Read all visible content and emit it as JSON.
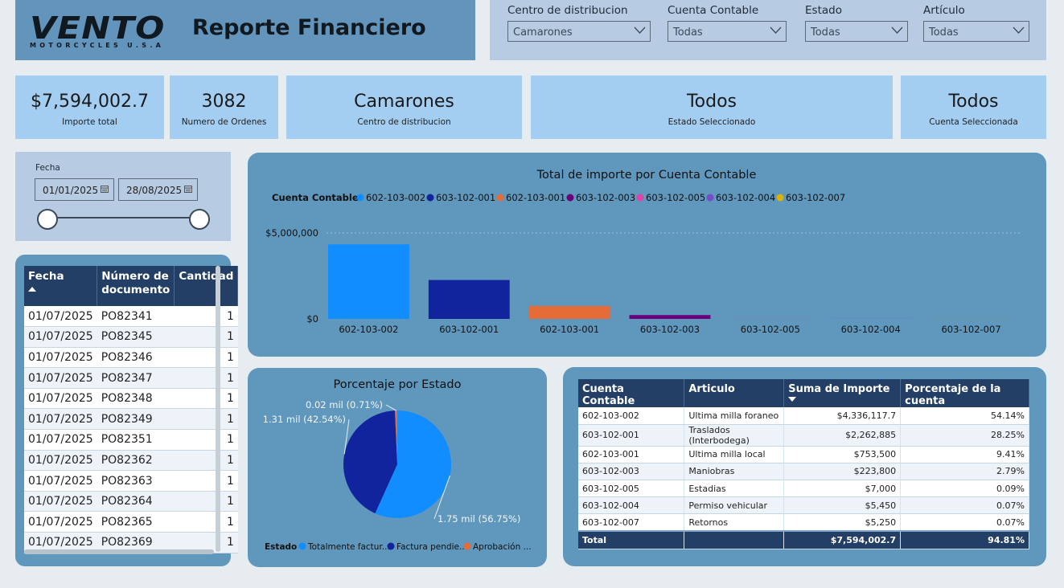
{
  "header": {
    "logo_word": "VENTO",
    "logo_sub": "MOTORCYCLES U.S.A",
    "title": "Reporte Financiero"
  },
  "filters": [
    {
      "label": "Centro de distribucion",
      "value": "Camarones"
    },
    {
      "label": "Cuenta Contable",
      "value": "Todas"
    },
    {
      "label": "Estado",
      "value": "Todas"
    },
    {
      "label": "Artículo",
      "value": "Todas"
    }
  ],
  "kpis": [
    {
      "value": "$7,594,002.7",
      "caption": "Importe total"
    },
    {
      "value": "3082",
      "caption": "Numero de Ordenes"
    },
    {
      "value": "Camarones",
      "caption": "Centro de distribucion"
    },
    {
      "value": "Todos",
      "caption": "Estado Seleccionado"
    },
    {
      "value": "Todos",
      "caption": "Cuenta Seleccionada"
    }
  ],
  "date_filter": {
    "label": "Fecha",
    "start": "01/01/2025",
    "end": "28/08/2025"
  },
  "orders_table": {
    "columns": [
      "Fecha",
      "Número de documento",
      "Cantidad"
    ],
    "rows": [
      [
        "01/07/2025",
        "PO82341",
        "1"
      ],
      [
        "01/07/2025",
        "PO82345",
        "1"
      ],
      [
        "01/07/2025",
        "PO82346",
        "1"
      ],
      [
        "01/07/2025",
        "PO82347",
        "1"
      ],
      [
        "01/07/2025",
        "PO82348",
        "1"
      ],
      [
        "01/07/2025",
        "PO82349",
        "1"
      ],
      [
        "01/07/2025",
        "PO82351",
        "1"
      ],
      [
        "01/07/2025",
        "PO82362",
        "1"
      ],
      [
        "01/07/2025",
        "PO82363",
        "1"
      ],
      [
        "01/07/2025",
        "PO82364",
        "1"
      ],
      [
        "01/07/2025",
        "PO82365",
        "1"
      ],
      [
        "01/07/2025",
        "PO82369",
        "1"
      ]
    ]
  },
  "colors": {
    "c1": "#118dff",
    "c2": "#12239e",
    "c3": "#e66c37",
    "c4": "#6b007b",
    "c5": "#e044a7",
    "c6": "#744ec2",
    "c7": "#d9b300"
  },
  "chart_data": [
    {
      "type": "bar",
      "title": "Total de importe por Cuenta Contable",
      "legend_title": "Cuenta Contable",
      "categories": [
        "602-103-002",
        "603-102-001",
        "602-103-001",
        "603-102-003",
        "603-102-005",
        "603-102-004",
        "603-102-007"
      ],
      "values": [
        4336117.7,
        2262885,
        753500,
        223800,
        7000,
        5450,
        5250
      ],
      "colors": [
        "#118dff",
        "#12239e",
        "#e66c37",
        "#6b007b",
        "#e044a7",
        "#744ec2",
        "#d9b300"
      ],
      "ylim": [
        0,
        5000000
      ],
      "y_ticks": [
        0,
        5000000
      ],
      "y_tick_labels": [
        "$0",
        "$5,000,000"
      ],
      "grid": true,
      "legend_position": "top-left"
    },
    {
      "type": "pie",
      "title": "Porcentaje por Estado",
      "legend_title": "Estado",
      "labels": [
        "Totalmente factur...",
        "Factura pendie...",
        "Aprobación ..."
      ],
      "values": [
        56.75,
        42.54,
        0.71
      ],
      "data_labels": [
        "1.75 mil (56.75%)",
        "1.31 mil (42.54%)",
        "0.02 mil (0.71%)"
      ],
      "colors": [
        "#118dff",
        "#12239e",
        "#e66c37"
      ],
      "legend_position": "bottom"
    }
  ],
  "cuenta_table": {
    "columns": [
      "Cuenta Contable",
      "Articulo",
      "Suma de Importe",
      "Porcentaje de la cuenta"
    ],
    "rows": [
      [
        "602-103-002",
        "Ultima milla foraneo",
        "$4,336,117.7",
        "54.14%"
      ],
      [
        "603-102-001",
        "Traslados (Interbodega)",
        "$2,262,885",
        "28.25%"
      ],
      [
        "602-103-001",
        "Ultima milla local",
        "$753,500",
        "9.41%"
      ],
      [
        "603-102-003",
        "Maniobras",
        "$223,800",
        "2.79%"
      ],
      [
        "603-102-005",
        "Estadias",
        "$7,000",
        "0.09%"
      ],
      [
        "603-102-004",
        "Permiso vehicular",
        "$5,450",
        "0.07%"
      ],
      [
        "603-102-007",
        "Retornos",
        "$5,250",
        "0.07%"
      ]
    ],
    "total": [
      "Total",
      "",
      "$7,594,002.7",
      "94.81%"
    ]
  }
}
